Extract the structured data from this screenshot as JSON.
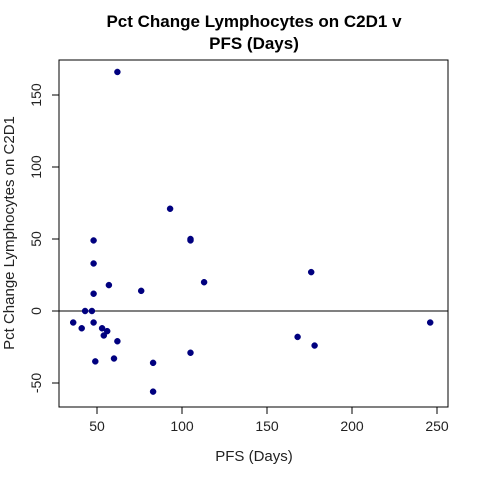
{
  "chart_data": {
    "type": "scatter",
    "title_line1": "Pct Change Lymphocytes on C2D1 v",
    "title_line2": "PFS (Days)",
    "xlabel": "PFS (Days)",
    "ylabel": "Pct Change Lymphocytes on C2D1",
    "xlim": [
      30,
      250
    ],
    "ylim": [
      -60,
      170
    ],
    "xticks": [
      50,
      100,
      150,
      200,
      250
    ],
    "yticks": [
      -50,
      0,
      50,
      100,
      150
    ],
    "reference_line_y": 0,
    "point_color": "#00007F",
    "points": [
      {
        "x": 62,
        "y": 166
      },
      {
        "x": 93,
        "y": 71
      },
      {
        "x": 105,
        "y": 50
      },
      {
        "x": 105,
        "y": 49
      },
      {
        "x": 48,
        "y": 49
      },
      {
        "x": 48,
        "y": 33
      },
      {
        "x": 176,
        "y": 27
      },
      {
        "x": 113,
        "y": 20
      },
      {
        "x": 57,
        "y": 18
      },
      {
        "x": 76,
        "y": 14
      },
      {
        "x": 48,
        "y": 12
      },
      {
        "x": 43,
        "y": 0
      },
      {
        "x": 47,
        "y": 0
      },
      {
        "x": 36,
        "y": -8
      },
      {
        "x": 48,
        "y": -8
      },
      {
        "x": 246,
        "y": -8
      },
      {
        "x": 41,
        "y": -12
      },
      {
        "x": 53,
        "y": -12
      },
      {
        "x": 56,
        "y": -14
      },
      {
        "x": 54,
        "y": -17
      },
      {
        "x": 168,
        "y": -18
      },
      {
        "x": 62,
        "y": -21
      },
      {
        "x": 178,
        "y": -24
      },
      {
        "x": 105,
        "y": -29
      },
      {
        "x": 60,
        "y": -33
      },
      {
        "x": 49,
        "y": -35
      },
      {
        "x": 83,
        "y": -36
      },
      {
        "x": 83,
        "y": -56
      }
    ]
  }
}
